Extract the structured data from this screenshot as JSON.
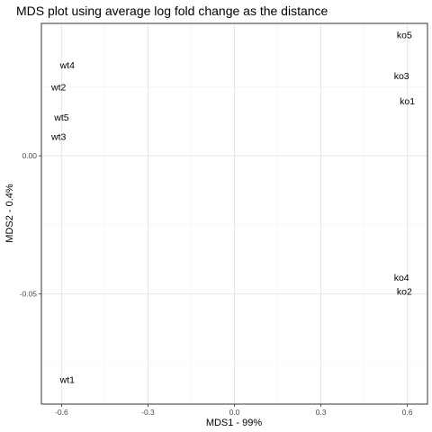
{
  "chart_data": {
    "type": "scatter",
    "title": "MDS plot using average log fold change as the distance",
    "xlabel": "MDS1 - 99%",
    "ylabel": "MDS2 - 0.4%",
    "xlim": [
      -0.67,
      0.67
    ],
    "ylim": [
      -0.09,
      0.048
    ],
    "x_ticks": [
      -0.6,
      -0.3,
      0.0,
      0.3,
      0.6
    ],
    "x_tick_labels": [
      "-0.6",
      "-0.3",
      "0.0",
      "0.3",
      "0.6"
    ],
    "y_ticks": [
      0.0,
      -0.05
    ],
    "y_tick_labels": [
      "0.00",
      "-0.05"
    ],
    "grid": true,
    "points": [
      {
        "label": "wt1",
        "x": -0.58,
        "y": -0.081
      },
      {
        "label": "wt2",
        "x": -0.61,
        "y": 0.025
      },
      {
        "label": "wt3",
        "x": -0.61,
        "y": 0.007
      },
      {
        "label": "wt4",
        "x": -0.58,
        "y": 0.033
      },
      {
        "label": "wt5",
        "x": -0.6,
        "y": 0.014
      },
      {
        "label": "ko1",
        "x": 0.6,
        "y": 0.02
      },
      {
        "label": "ko2",
        "x": 0.59,
        "y": -0.049
      },
      {
        "label": "ko3",
        "x": 0.58,
        "y": 0.029
      },
      {
        "label": "ko4",
        "x": 0.58,
        "y": -0.044
      },
      {
        "label": "ko5",
        "x": 0.59,
        "y": 0.044
      }
    ]
  }
}
